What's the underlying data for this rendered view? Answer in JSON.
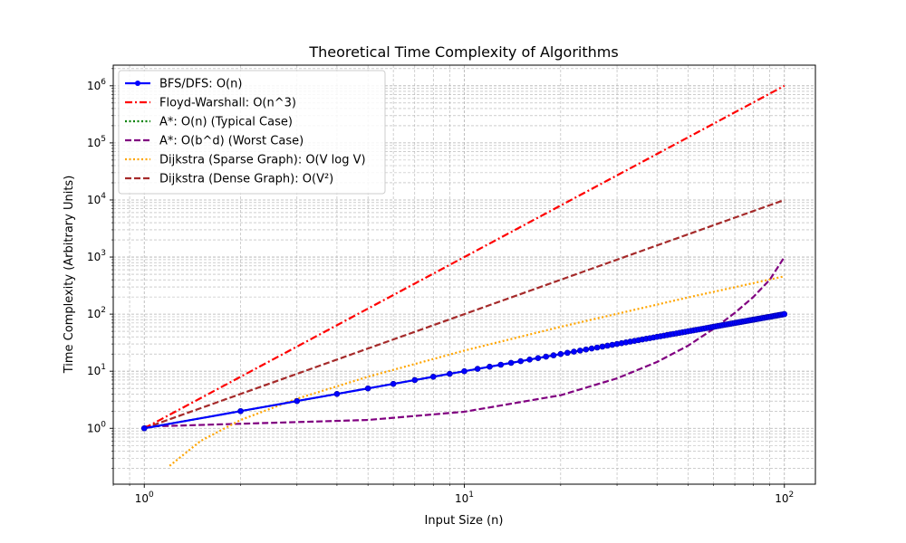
{
  "chart_data": {
    "type": "line",
    "title": "Theoretical Time Complexity of Algorithms",
    "xlabel": "Input Size (n)",
    "ylabel": "Time Complexity (Arbitrary Units)",
    "xscale": "log",
    "yscale": "log",
    "xlim": [
      0.8,
      125
    ],
    "ylim": [
      0.105,
      2300000
    ],
    "x_ticks": [
      {
        "value": 1,
        "base": "10",
        "exp": "0"
      },
      {
        "value": 10,
        "base": "10",
        "exp": "1"
      },
      {
        "value": 100,
        "base": "10",
        "exp": "2"
      }
    ],
    "y_ticks": [
      {
        "value": 1,
        "base": "10",
        "exp": "0"
      },
      {
        "value": 10,
        "base": "10",
        "exp": "1"
      },
      {
        "value": 100,
        "base": "10",
        "exp": "2"
      },
      {
        "value": 1000,
        "base": "10",
        "exp": "3"
      },
      {
        "value": 10000,
        "base": "10",
        "exp": "4"
      },
      {
        "value": 100000,
        "base": "10",
        "exp": "5"
      },
      {
        "value": 1000000,
        "base": "10",
        "exp": "6"
      }
    ],
    "grid": true,
    "legend_position": "top-left",
    "series": [
      {
        "name": "BFS/DFS: O(n)",
        "color": "#0000ff",
        "style": "solid",
        "marker": "circle",
        "x": [
          1,
          10,
          100
        ],
        "y": [
          1,
          10,
          100
        ]
      },
      {
        "name": "Floyd-Warshall: O(n^3)",
        "color": "#ff0000",
        "style": "dashdot",
        "x": [
          1,
          10,
          100
        ],
        "y": [
          1,
          1000,
          1000000
        ]
      },
      {
        "name": "A*: O(n) (Typical Case)",
        "color": "#008000",
        "style": "dotted",
        "x": [
          1,
          10,
          100
        ],
        "y": [
          1,
          10,
          100
        ]
      },
      {
        "name": "A*: O(b^d) (Worst Case)",
        "color": "#800080",
        "style": "dashed",
        "x": [
          1,
          5,
          10,
          20,
          30,
          40,
          50,
          60,
          70,
          80,
          90,
          100
        ],
        "y": [
          1.07,
          1.4,
          1.95,
          3.8,
          7.5,
          14.5,
          28,
          55,
          105,
          200,
          400,
          1000
        ]
      },
      {
        "name": "Dijkstra (Sparse Graph): O(V log V)",
        "color": "#ffa500",
        "style": "dotted",
        "x": [
          1.2,
          1.5,
          2,
          3,
          5,
          10,
          20,
          50,
          100
        ],
        "y": [
          0.22,
          0.6,
          1.4,
          3.3,
          8,
          23,
          60,
          196,
          460
        ]
      },
      {
        "name": "Dijkstra (Dense Graph): O(V²)",
        "color": "#a52a2a",
        "style": "dashed",
        "x": [
          1,
          10,
          100
        ],
        "y": [
          1,
          100,
          10000
        ]
      }
    ]
  }
}
